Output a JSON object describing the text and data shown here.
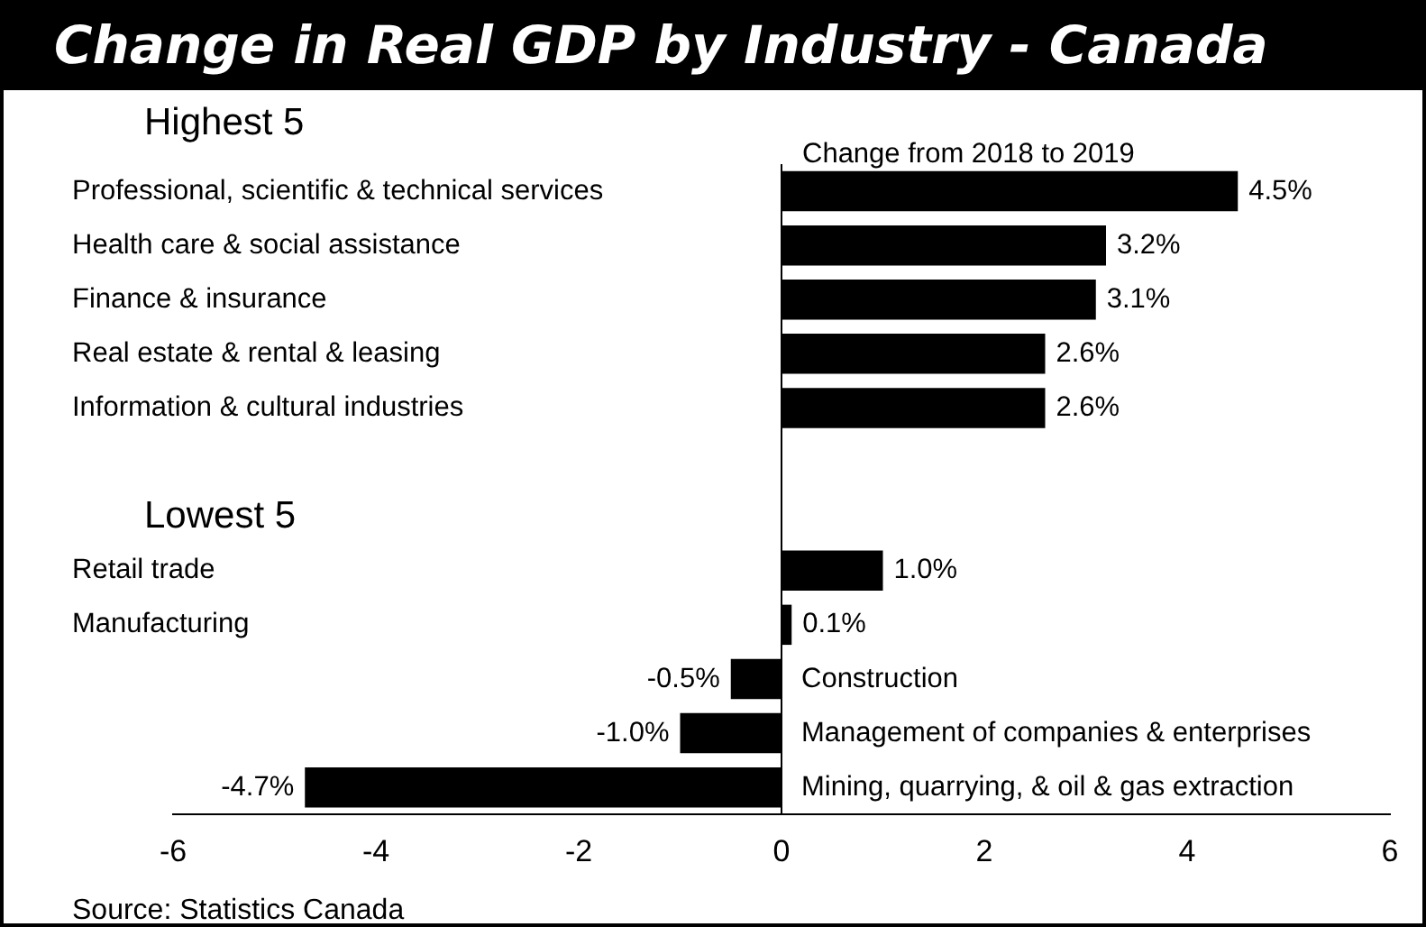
{
  "chart_data": {
    "type": "bar",
    "orientation": "horizontal",
    "title": "Change in Real GDP by Industry - Canada",
    "categories": [
      "Professional, scientific & technical services",
      "Health care & social assistance",
      "Finance & insurance",
      "Real estate & rental & leasing",
      "Information & cultural industries",
      null,
      null,
      "Retail trade",
      "Manufacturing",
      "Construction",
      "Management of companies & enterprises",
      "Mining, quarrying, & oil & gas extraction"
    ],
    "values": [
      4.5,
      3.2,
      3.1,
      2.6,
      2.6,
      null,
      null,
      1.0,
      0.1,
      -0.5,
      -1.0,
      -4.7
    ],
    "value_labels": [
      "4.5%",
      "3.2%",
      "3.1%",
      "2.6%",
      "2.6%",
      null,
      null,
      "1.0%",
      "0.1%",
      "-0.5%",
      "-1.0%",
      "-4.7%"
    ],
    "color": "#000000",
    "xlim": [
      -6,
      6
    ],
    "xticks": [
      -6,
      -4,
      -2,
      0,
      2,
      4,
      6
    ],
    "grid": false,
    "legend": false,
    "ref_lines": [
      {
        "axis": "x",
        "value": 0,
        "color": "#000000"
      }
    ],
    "annotations": [
      "Highest 5",
      "Lowest 5",
      "Change from 2018 to 2019",
      "Source: Statistics Canada"
    ]
  }
}
